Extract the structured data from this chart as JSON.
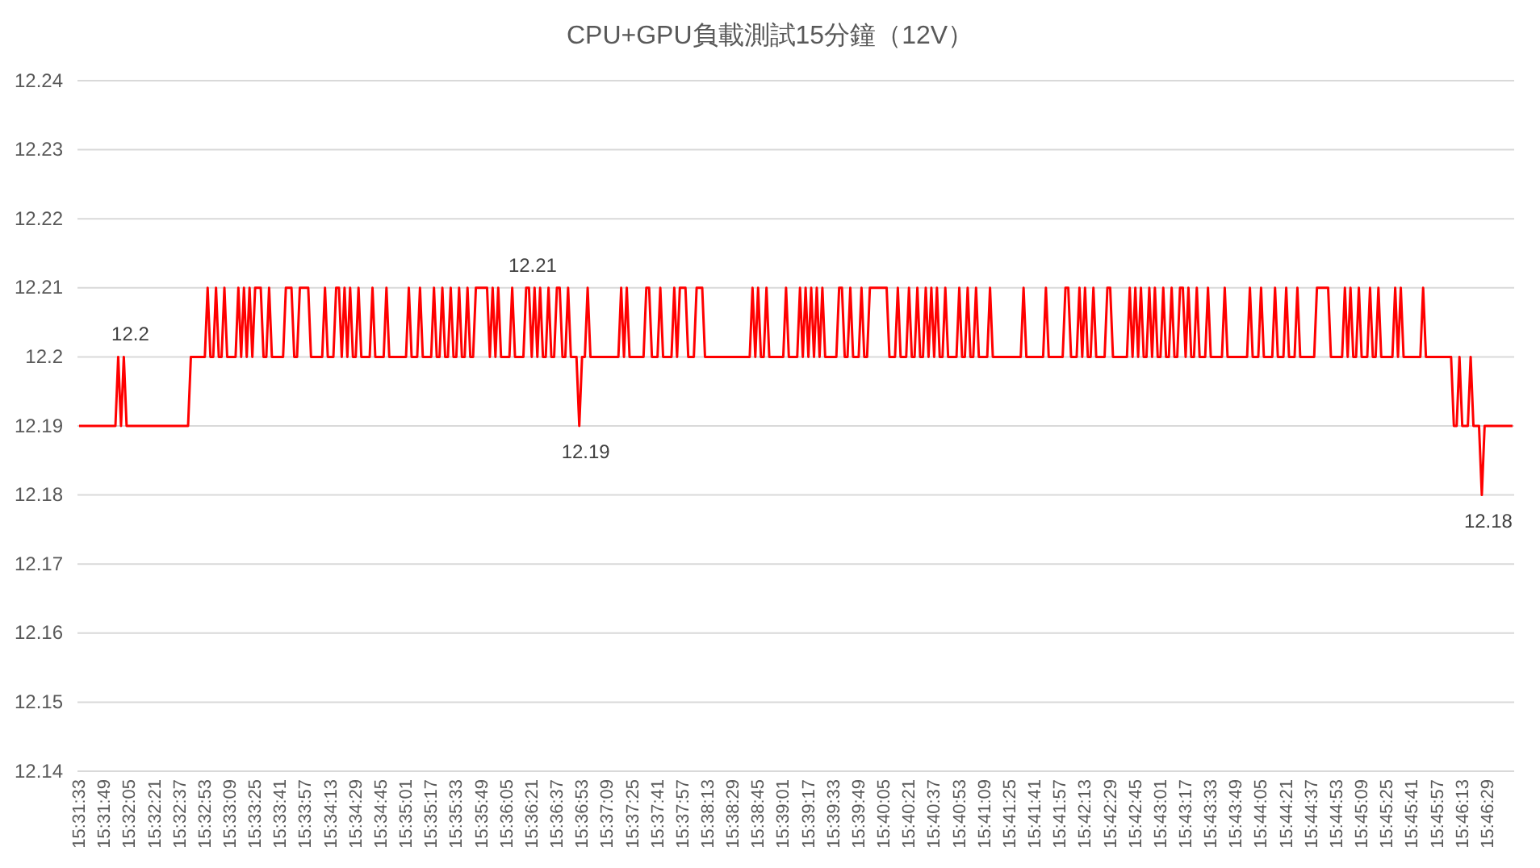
{
  "chart_data": {
    "type": "line",
    "title": "CPU+GPU負載測試15分鐘（12V）",
    "categories": [
      "15:31:33",
      null,
      null,
      null,
      null,
      null,
      null,
      null,
      null,
      "15:31:49",
      null,
      null,
      null,
      null,
      null,
      null,
      null,
      null,
      "15:32:05",
      null,
      null,
      null,
      null,
      null,
      null,
      null,
      null,
      "15:32:21",
      null,
      null,
      null,
      null,
      null,
      null,
      null,
      null,
      "15:32:37",
      null,
      null,
      null,
      null,
      null,
      null,
      null,
      null,
      "15:32:53",
      null,
      null,
      null,
      null,
      null,
      null,
      null,
      null,
      "15:33:09",
      null,
      null,
      null,
      null,
      null,
      null,
      null,
      null,
      "15:33:25",
      null,
      null,
      null,
      null,
      null,
      null,
      null,
      null,
      "15:33:41",
      null,
      null,
      null,
      null,
      null,
      null,
      null,
      null,
      "15:33:57",
      null,
      null,
      null,
      null,
      null,
      null,
      null,
      null,
      "15:34:13",
      null,
      null,
      null,
      null,
      null,
      null,
      null,
      null,
      "15:34:29",
      null,
      null,
      null,
      null,
      null,
      null,
      null,
      null,
      "15:34:45",
      null,
      null,
      null,
      null,
      null,
      null,
      null,
      null,
      "15:35:01",
      null,
      null,
      null,
      null,
      null,
      null,
      null,
      null,
      "15:35:17",
      null,
      null,
      null,
      null,
      null,
      null,
      null,
      null,
      "15:35:33",
      null,
      null,
      null,
      null,
      null,
      null,
      null,
      null,
      "15:35:49",
      null,
      null,
      null,
      null,
      null,
      null,
      null,
      null,
      "15:36:05",
      null,
      null,
      null,
      null,
      null,
      null,
      null,
      null,
      "15:36:21",
      null,
      null,
      null,
      null,
      null,
      null,
      null,
      null,
      "15:36:37",
      null,
      null,
      null,
      null,
      null,
      null,
      null,
      null,
      "15:36:53",
      null,
      null,
      null,
      null,
      null,
      null,
      null,
      null,
      "15:37:09",
      null,
      null,
      null,
      null,
      null,
      null,
      null,
      null,
      "15:37:25",
      null,
      null,
      null,
      null,
      null,
      null,
      null,
      null,
      "15:37:41",
      null,
      null,
      null,
      null,
      null,
      null,
      null,
      null,
      "15:37:57",
      null,
      null,
      null,
      null,
      null,
      null,
      null,
      null,
      "15:38:13",
      null,
      null,
      null,
      null,
      null,
      null,
      null,
      null,
      "15:38:29",
      null,
      null,
      null,
      null,
      null,
      null,
      null,
      null,
      "15:38:45",
      null,
      null,
      null,
      null,
      null,
      null,
      null,
      null,
      "15:39:01",
      null,
      null,
      null,
      null,
      null,
      null,
      null,
      null,
      "15:39:17",
      null,
      null,
      null,
      null,
      null,
      null,
      null,
      null,
      "15:39:33",
      null,
      null,
      null,
      null,
      null,
      null,
      null,
      null,
      "15:39:49",
      null,
      null,
      null,
      null,
      null,
      null,
      null,
      null,
      "15:40:05",
      null,
      null,
      null,
      null,
      null,
      null,
      null,
      null,
      "15:40:21",
      null,
      null,
      null,
      null,
      null,
      null,
      null,
      null,
      "15:40:37",
      null,
      null,
      null,
      null,
      null,
      null,
      null,
      null,
      "15:40:53",
      null,
      null,
      null,
      null,
      null,
      null,
      null,
      null,
      "15:41:09",
      null,
      null,
      null,
      null,
      null,
      null,
      null,
      null,
      "15:41:25",
      null,
      null,
      null,
      null,
      null,
      null,
      null,
      null,
      "15:41:41",
      null,
      null,
      null,
      null,
      null,
      null,
      null,
      null,
      "15:41:57",
      null,
      null,
      null,
      null,
      null,
      null,
      null,
      null,
      "15:42:13",
      null,
      null,
      null,
      null,
      null,
      null,
      null,
      null,
      "15:42:29",
      null,
      null,
      null,
      null,
      null,
      null,
      null,
      null,
      "15:42:45",
      null,
      null,
      null,
      null,
      null,
      null,
      null,
      null,
      "15:43:01",
      null,
      null,
      null,
      null,
      null,
      null,
      null,
      null,
      "15:43:17",
      null,
      null,
      null,
      null,
      null,
      null,
      null,
      null,
      "15:43:33",
      null,
      null,
      null,
      null,
      null,
      null,
      null,
      null,
      "15:43:49",
      null,
      null,
      null,
      null,
      null,
      null,
      null,
      null,
      "15:44:05",
      null,
      null,
      null,
      null,
      null,
      null,
      null,
      null,
      "15:44:21",
      null,
      null,
      null,
      null,
      null,
      null,
      null,
      null,
      "15:44:37",
      null,
      null,
      null,
      null,
      null,
      null,
      null,
      null,
      "15:44:53",
      null,
      null,
      null,
      null,
      null,
      null,
      null,
      null,
      "15:45:09",
      null,
      null,
      null,
      null,
      null,
      null,
      null,
      null,
      "15:45:25",
      null,
      null,
      null,
      null,
      null,
      null,
      null,
      null,
      "15:45:41",
      null,
      null,
      null,
      null,
      null,
      null,
      null,
      null,
      "15:45:57",
      null,
      null,
      null,
      null,
      null,
      null,
      null,
      null,
      "15:46:13",
      null,
      null,
      null,
      null,
      null,
      null,
      null,
      null,
      "15:46:29",
      null,
      null,
      null,
      null,
      null,
      null,
      null,
      null,
      null
    ],
    "series": [
      {
        "color": "#ff0000",
        "values": [
          12.19,
          12.19,
          12.19,
          12.19,
          12.19,
          12.19,
          12.19,
          12.19,
          12.19,
          12.19,
          12.19,
          12.19,
          12.19,
          12.19,
          12.2,
          12.19,
          12.2,
          12.19,
          12.19,
          12.19,
          12.19,
          12.19,
          12.19,
          12.19,
          12.19,
          12.19,
          12.19,
          12.19,
          12.19,
          12.19,
          12.19,
          12.19,
          12.19,
          12.19,
          12.19,
          12.19,
          12.19,
          12.19,
          12.19,
          12.19,
          12.2,
          12.2,
          12.2,
          12.2,
          12.2,
          12.2,
          12.21,
          12.2,
          12.2,
          12.21,
          12.2,
          12.2,
          12.21,
          12.2,
          12.2,
          12.2,
          12.2,
          12.21,
          12.2,
          12.21,
          12.2,
          12.21,
          12.2,
          12.21,
          12.21,
          12.21,
          12.2,
          12.2,
          12.21,
          12.2,
          12.2,
          12.2,
          12.2,
          12.2,
          12.21,
          12.21,
          12.21,
          12.2,
          12.2,
          12.21,
          12.21,
          12.21,
          12.21,
          12.2,
          12.2,
          12.2,
          12.2,
          12.2,
          12.21,
          12.2,
          12.2,
          12.2,
          12.21,
          12.21,
          12.2,
          12.21,
          12.2,
          12.21,
          12.2,
          12.2,
          12.21,
          12.2,
          12.2,
          12.2,
          12.2,
          12.21,
          12.2,
          12.2,
          12.2,
          12.2,
          12.21,
          12.2,
          12.2,
          12.2,
          12.2,
          12.2,
          12.2,
          12.2,
          12.21,
          12.2,
          12.2,
          12.2,
          12.21,
          12.2,
          12.2,
          12.2,
          12.2,
          12.21,
          12.2,
          12.2,
          12.21,
          12.2,
          12.2,
          12.21,
          12.2,
          12.2,
          12.21,
          12.2,
          12.2,
          12.21,
          12.2,
          12.2,
          12.21,
          12.21,
          12.21,
          12.21,
          12.21,
          12.2,
          12.21,
          12.2,
          12.21,
          12.2,
          12.2,
          12.2,
          12.2,
          12.21,
          12.2,
          12.2,
          12.2,
          12.2,
          12.21,
          12.21,
          12.2,
          12.21,
          12.2,
          12.21,
          12.2,
          12.2,
          12.21,
          12.2,
          12.2,
          12.21,
          12.21,
          12.2,
          12.2,
          12.21,
          12.2,
          12.2,
          12.2,
          12.19,
          12.2,
          12.2,
          12.21,
          12.2,
          12.2,
          12.2,
          12.2,
          12.2,
          12.2,
          12.2,
          12.2,
          12.2,
          12.2,
          12.2,
          12.21,
          12.2,
          12.21,
          12.2,
          12.2,
          12.2,
          12.2,
          12.2,
          12.2,
          12.21,
          12.21,
          12.2,
          12.2,
          12.2,
          12.21,
          12.2,
          12.2,
          12.2,
          12.2,
          12.21,
          12.2,
          12.21,
          12.21,
          12.21,
          12.2,
          12.2,
          12.2,
          12.21,
          12.21,
          12.21,
          12.2,
          12.2,
          12.2,
          12.2,
          12.2,
          12.2,
          12.2,
          12.2,
          12.2,
          12.2,
          12.2,
          12.2,
          12.2,
          12.2,
          12.2,
          12.2,
          12.2,
          12.21,
          12.2,
          12.21,
          12.2,
          12.2,
          12.21,
          12.2,
          12.2,
          12.2,
          12.2,
          12.2,
          12.2,
          12.21,
          12.2,
          12.2,
          12.2,
          12.2,
          12.21,
          12.2,
          12.21,
          12.2,
          12.21,
          12.2,
          12.21,
          12.2,
          12.21,
          12.2,
          12.2,
          12.2,
          12.2,
          12.2,
          12.21,
          12.21,
          12.2,
          12.2,
          12.21,
          12.2,
          12.2,
          12.2,
          12.21,
          12.2,
          12.2,
          12.21,
          12.21,
          12.21,
          12.21,
          12.21,
          12.21,
          12.21,
          12.2,
          12.2,
          12.2,
          12.21,
          12.2,
          12.2,
          12.2,
          12.21,
          12.2,
          12.2,
          12.21,
          12.2,
          12.2,
          12.21,
          12.2,
          12.21,
          12.2,
          12.21,
          12.2,
          12.2,
          12.21,
          12.2,
          12.2,
          12.2,
          12.2,
          12.21,
          12.2,
          12.2,
          12.21,
          12.2,
          12.2,
          12.21,
          12.2,
          12.2,
          12.2,
          12.2,
          12.21,
          12.2,
          12.2,
          12.2,
          12.2,
          12.2,
          12.2,
          12.2,
          12.2,
          12.2,
          12.2,
          12.2,
          12.21,
          12.2,
          12.2,
          12.2,
          12.2,
          12.2,
          12.2,
          12.2,
          12.21,
          12.2,
          12.2,
          12.2,
          12.2,
          12.2,
          12.2,
          12.21,
          12.21,
          12.2,
          12.2,
          12.2,
          12.21,
          12.2,
          12.21,
          12.2,
          12.2,
          12.21,
          12.2,
          12.2,
          12.2,
          12.2,
          12.21,
          12.21,
          12.2,
          12.2,
          12.2,
          12.2,
          12.2,
          12.2,
          12.21,
          12.2,
          12.21,
          12.2,
          12.21,
          12.2,
          12.2,
          12.21,
          12.2,
          12.21,
          12.2,
          12.2,
          12.21,
          12.2,
          12.2,
          12.21,
          12.2,
          12.2,
          12.21,
          12.21,
          12.2,
          12.21,
          12.2,
          12.2,
          12.21,
          12.2,
          12.2,
          12.2,
          12.21,
          12.2,
          12.2,
          12.2,
          12.2,
          12.2,
          12.21,
          12.2,
          12.2,
          12.2,
          12.2,
          12.2,
          12.2,
          12.2,
          12.2,
          12.21,
          12.2,
          12.2,
          12.2,
          12.21,
          12.2,
          12.2,
          12.2,
          12.2,
          12.21,
          12.2,
          12.2,
          12.2,
          12.21,
          12.2,
          12.2,
          12.2,
          12.21,
          12.2,
          12.2,
          12.2,
          12.2,
          12.2,
          12.2,
          12.21,
          12.21,
          12.21,
          12.21,
          12.21,
          12.2,
          12.2,
          12.2,
          12.2,
          12.2,
          12.21,
          12.2,
          12.21,
          12.2,
          12.2,
          12.21,
          12.2,
          12.2,
          12.2,
          12.21,
          12.2,
          12.2,
          12.21,
          12.2,
          12.2,
          12.2,
          12.2,
          12.2,
          12.21,
          12.2,
          12.21,
          12.2,
          12.2,
          12.2,
          12.2,
          12.2,
          12.2,
          12.2,
          12.21,
          12.2,
          12.2,
          12.2,
          12.2,
          12.2,
          12.2,
          12.2,
          12.2,
          12.2,
          12.2,
          12.19,
          12.19,
          12.2,
          12.19,
          12.19,
          12.19,
          12.2,
          12.19,
          12.19,
          12.19,
          12.18,
          12.19,
          12.19,
          12.19,
          12.19,
          12.19,
          12.19,
          12.19,
          12.19,
          12.19,
          12.19,
          12.19
        ],
        "value_labels": [
          null,
          null,
          null,
          null,
          null,
          null,
          null,
          null,
          null,
          null,
          null,
          null,
          null,
          null,
          null,
          null,
          "12.2",
          null,
          null,
          null,
          null,
          null,
          null,
          null,
          null,
          null,
          null,
          null,
          null,
          null,
          null,
          null,
          null,
          null,
          null,
          null,
          null,
          null,
          null,
          null,
          null,
          null,
          null,
          null,
          null,
          null,
          null,
          null,
          null,
          null,
          null,
          null,
          null,
          null,
          null,
          null,
          null,
          null,
          null,
          null,
          null,
          null,
          null,
          null,
          null,
          null,
          null,
          null,
          null,
          null,
          null,
          null,
          null,
          null,
          null,
          null,
          null,
          null,
          null,
          null,
          null,
          null,
          null,
          null,
          null,
          null,
          null,
          null,
          null,
          null,
          null,
          null,
          null,
          null,
          null,
          null,
          null,
          null,
          null,
          null,
          null,
          null,
          null,
          null,
          null,
          null,
          null,
          null,
          null,
          null,
          null,
          null,
          null,
          null,
          null,
          null,
          null,
          null,
          null,
          null,
          null,
          null,
          null,
          null,
          null,
          null,
          null,
          null,
          null,
          null,
          null,
          null,
          null,
          null,
          null,
          null,
          null,
          null,
          null,
          null,
          null,
          null,
          null,
          null,
          null,
          null,
          null,
          null,
          null,
          null,
          null,
          null,
          null,
          null,
          null,
          null,
          null,
          null,
          null,
          null,
          "12.21",
          null,
          null,
          null,
          null,
          null,
          null,
          null,
          null,
          null,
          null,
          null,
          null,
          null,
          null,
          null,
          null,
          null,
          null,
          "12.19",
          null,
          null,
          null,
          null,
          null,
          null,
          null,
          null,
          null,
          null,
          null,
          null,
          null,
          null,
          null,
          null,
          null,
          null,
          null,
          null,
          null,
          null,
          null,
          null,
          null,
          null,
          null,
          null,
          null,
          null,
          null,
          null,
          null,
          null,
          null,
          null,
          null,
          null,
          null,
          null,
          null,
          null,
          null,
          null,
          null,
          null,
          null,
          null,
          null,
          null,
          null,
          null,
          null,
          null,
          null,
          null,
          null,
          null,
          null,
          null,
          null,
          null,
          null,
          null,
          null,
          null,
          null,
          null,
          null,
          null,
          null,
          null,
          null,
          null,
          null,
          null,
          null,
          null,
          null,
          null,
          null,
          null,
          null,
          null,
          null,
          null,
          null,
          null,
          null,
          null,
          null,
          null,
          null,
          null,
          null,
          null,
          null,
          null,
          null,
          null,
          null,
          null,
          null,
          null,
          null,
          null,
          null,
          null,
          null,
          null,
          null,
          null,
          null,
          null,
          null,
          null,
          null,
          null,
          null,
          null,
          null,
          null,
          null,
          null,
          null,
          null,
          null,
          null,
          null,
          null,
          null,
          null,
          null,
          null,
          null,
          null,
          null,
          null,
          null,
          null,
          null,
          null,
          null,
          null,
          null,
          null,
          null,
          null,
          null,
          null,
          null,
          null,
          null,
          null,
          null,
          null,
          null,
          null,
          null,
          null,
          null,
          null,
          null,
          null,
          null,
          null,
          null,
          null,
          null,
          null,
          null,
          null,
          null,
          null,
          null,
          null,
          null,
          null,
          null,
          null,
          null,
          null,
          null,
          null,
          null,
          null,
          null,
          null,
          null,
          null,
          null,
          null,
          null,
          null,
          null,
          null,
          null,
          null,
          null,
          null,
          null,
          null,
          null,
          null,
          null,
          null,
          null,
          null,
          null,
          null,
          null,
          null,
          null,
          null,
          null,
          null,
          null,
          null,
          null,
          null,
          null,
          null,
          null,
          null,
          null,
          null,
          null,
          null,
          null,
          null,
          null,
          null,
          null,
          null,
          null,
          null,
          null,
          null,
          null,
          null,
          null,
          null,
          null,
          null,
          null,
          null,
          null,
          null,
          null,
          null,
          null,
          null,
          null,
          null,
          null,
          null,
          null,
          null,
          null,
          null,
          null,
          null,
          null,
          null,
          null,
          null,
          null,
          null,
          null,
          null,
          null,
          null,
          null,
          null,
          null,
          null,
          null,
          null,
          null,
          null,
          null,
          null,
          null,
          null,
          null,
          null,
          null,
          null,
          null,
          null,
          null,
          null,
          null,
          null,
          null,
          null,
          null,
          null,
          null,
          null,
          null,
          null,
          null,
          null,
          null,
          null,
          null,
          null,
          null,
          null,
          null,
          null,
          null,
          null,
          null,
          null,
          null,
          null,
          null,
          null,
          null,
          null,
          "12.18",
          null,
          null,
          null,
          null,
          null,
          null,
          null,
          null,
          null,
          null,
          null
        ]
      }
    ],
    "ylim": [
      12.14,
      12.24
    ],
    "yticks": [
      12.14,
      12.15,
      12.16,
      12.17,
      12.18,
      12.19,
      12.2,
      12.21,
      12.22,
      12.23,
      12.24
    ],
    "grid": "y"
  }
}
